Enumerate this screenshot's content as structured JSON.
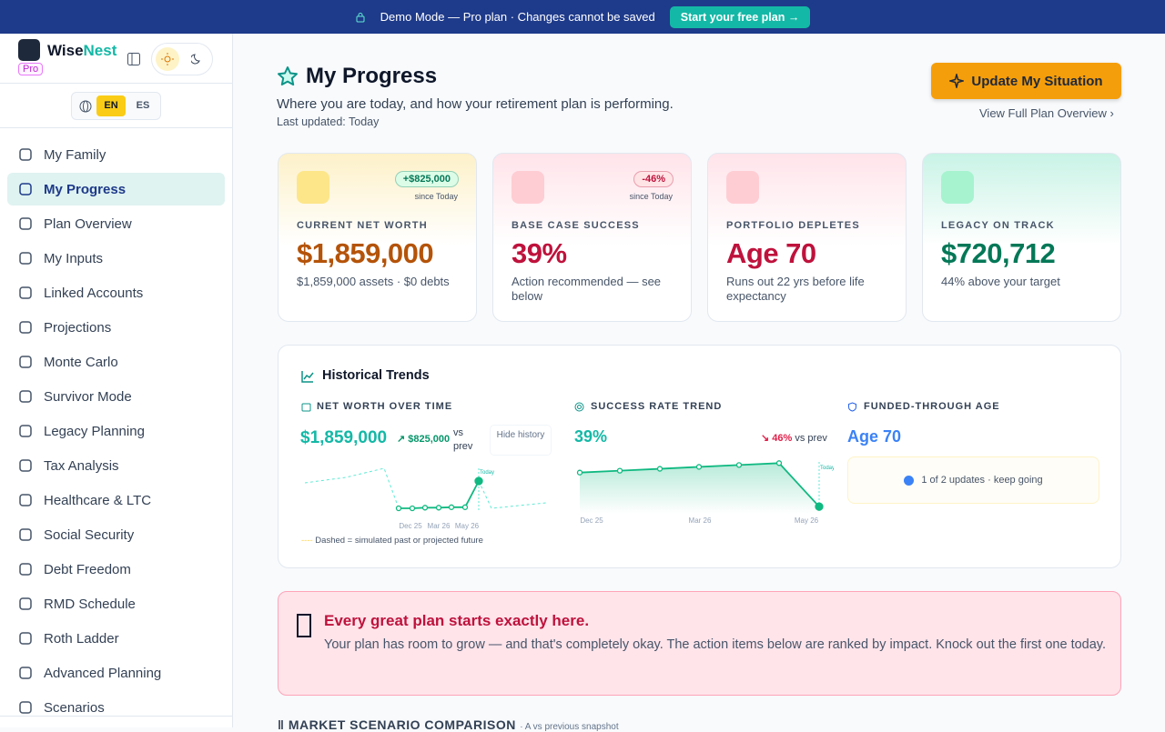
{
  "banner": {
    "text": "Demo Mode — Pro plan · Changes cannot be saved",
    "button": "Start your free plan →"
  },
  "sidebar": {
    "brand_a": "Wise",
    "brand_b": "Nest",
    "plan": "Pro",
    "languages": [
      "EN",
      "ES"
    ],
    "nav": [
      "My Family",
      "My Progress",
      "Plan Overview",
      "My Inputs",
      "Linked Accounts",
      "Projections",
      "Monte Carlo",
      "Survivor Mode",
      "Legacy Planning",
      "Tax Analysis",
      "Healthcare & LTC",
      "Social Security",
      "Debt Freedom",
      "RMD Schedule",
      "Roth Ladder",
      "Advanced Planning",
      "Scenarios"
    ]
  },
  "header": {
    "title": "My Progress",
    "subtitle": "Where you are today, and how your retirement plan is performing.",
    "updated": "Last updated: Today",
    "button": "Update My Situation",
    "link": "View Full Plan Overview"
  },
  "cards": [
    {
      "label": "CURRENT NET WORTH",
      "value": "$1,859,000",
      "detail": "$1,859,000 assets · $0 debts",
      "badge": "+$825,000",
      "badge_note": "since Today"
    },
    {
      "label": "BASE CASE SUCCESS",
      "value": "39%",
      "detail": "Action recommended — see below",
      "badge": "-46%",
      "badge_note": "since Today"
    },
    {
      "label": "PORTFOLIO DEPLETES",
      "value": "Age 70",
      "detail": "Runs out 22 yrs before life expectancy"
    },
    {
      "label": "LEGACY ON TRACK",
      "value": "$720,712",
      "detail": "44% above your target"
    }
  ],
  "trends": {
    "title": "Historical Trends",
    "net_worth": {
      "label": "NET WORTH OVER TIME",
      "value": "$1,859,000",
      "change": "$825,000",
      "change_note": "vs prev",
      "toggle": "Hide history",
      "today": "Today",
      "x_labels": [
        "Dec 25",
        "Mar 26",
        "May 26"
      ],
      "values": [
        1000000,
        1000000,
        1020000,
        1020000,
        1034000,
        1034000,
        1859000
      ],
      "legend": "Dashed = simulated past or projected future"
    },
    "success": {
      "label": "SUCCESS RATE TREND",
      "value": "39%",
      "change": "46%",
      "change_note": "vs prev",
      "today": "Today",
      "x_labels": [
        "Dec 25",
        "Mar 26",
        "May 26"
      ],
      "values": [
        75,
        77,
        79,
        81,
        83,
        85,
        39
      ]
    },
    "funded": {
      "label": "FUNDED-THROUGH AGE",
      "value": "Age 70",
      "note": "1 of 2 updates · keep going"
    }
  },
  "alert": {
    "title": "Every great plan starts exactly here.",
    "text": "Your plan has room to grow — and that's completely okay. The action items below are ranked by impact. Knock out the first one today."
  },
  "section": {
    "title": "MARKET SCENARIO COMPARISON",
    "note": "· A vs previous snapshot"
  }
}
